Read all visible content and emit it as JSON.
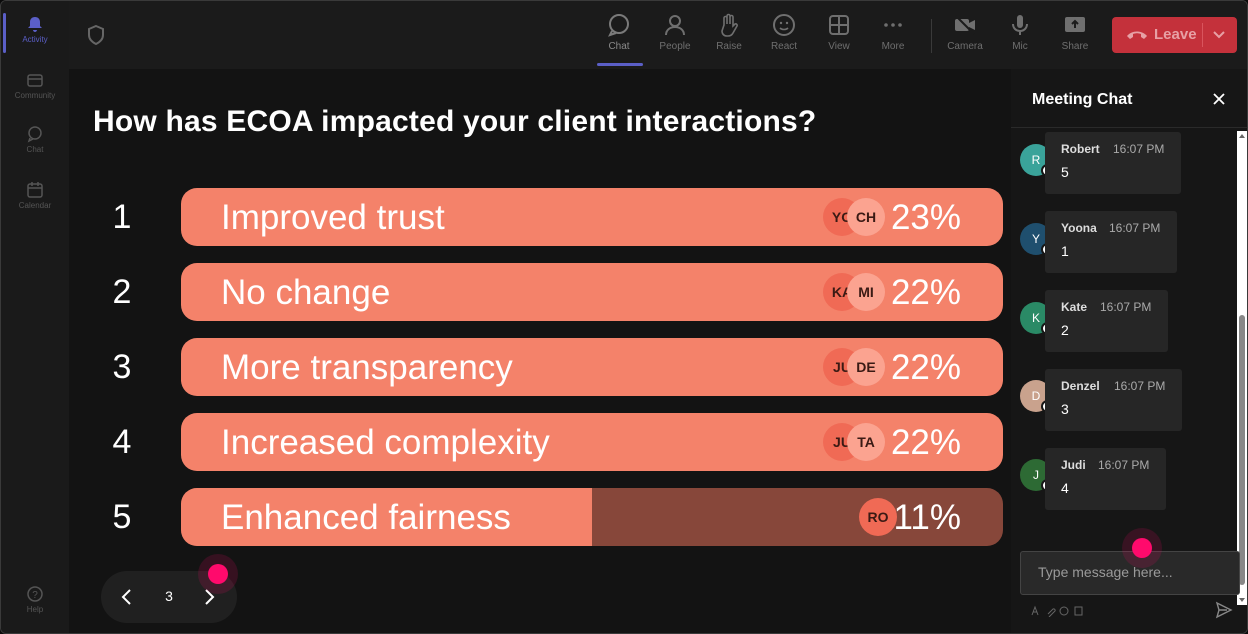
{
  "rail": {
    "items": [
      {
        "label": "Activity",
        "active": true
      },
      {
        "label": "Community"
      },
      {
        "label": "Chat"
      },
      {
        "label": "Calendar"
      },
      {
        "label": "Help"
      }
    ]
  },
  "toolbar": {
    "chat": "Chat",
    "people": "People",
    "raise": "Raise",
    "react": "React",
    "view": "View",
    "more": "More",
    "camera": "Camera",
    "mic": "Mic",
    "share": "Share",
    "leave": "Leave"
  },
  "poll": {
    "question": "How has ECOA impacted your client interactions?",
    "options": [
      {
        "num": "1",
        "label": "Improved trust",
        "pct": "23%",
        "fill": 1.0,
        "avatars": [
          "YO",
          "CH"
        ]
      },
      {
        "num": "2",
        "label": "No change",
        "pct": "22%",
        "fill": 1.0,
        "avatars": [
          "KA",
          "MI"
        ]
      },
      {
        "num": "3",
        "label": "More transparency",
        "pct": "22%",
        "fill": 1.0,
        "avatars": [
          "JU",
          "DE"
        ]
      },
      {
        "num": "4",
        "label": "Increased complexity",
        "pct": "22%",
        "fill": 1.0,
        "avatars": [
          "JU",
          "TA"
        ]
      },
      {
        "num": "5",
        "label": "Enhanced fairness",
        "pct": "11%",
        "fill": 0.5,
        "avatars": [
          "RO"
        ]
      }
    ],
    "page": "3"
  },
  "chat": {
    "title": "Meeting Chat",
    "placeholder": "Type message here...",
    "messages": [
      {
        "initial": "R",
        "name": "Robert",
        "time": "16:07 PM",
        "text": "5",
        "color": "#3aa39a"
      },
      {
        "initial": "Y",
        "name": "Yoona",
        "time": "16:07 PM",
        "text": "1",
        "color": "#1f4f6e"
      },
      {
        "initial": "K",
        "name": "Kate",
        "time": "16:07 PM",
        "text": "2",
        "color": "#2a8a66"
      },
      {
        "initial": "D",
        "name": "Denzel",
        "time": "16:07 PM",
        "text": "3",
        "color": "#c9a28d"
      },
      {
        "initial": "J",
        "name": "Judi",
        "time": "16:07 PM",
        "text": "4",
        "color": "#2d6a34"
      }
    ]
  },
  "colors": {
    "bar": "#f4826a",
    "bar_empty": "#87473a",
    "leave": "#c4313b",
    "accent": "#5b5fc7"
  }
}
